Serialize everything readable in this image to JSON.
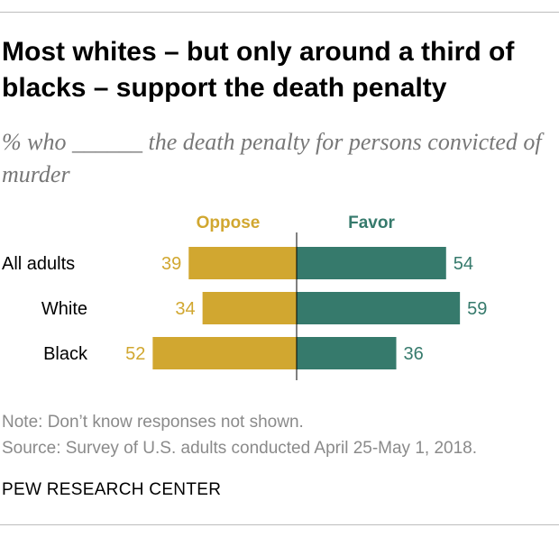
{
  "title": "Most whites – but only around a third of blacks – support the death penalty",
  "subtitle": "% who ______ the death penalty for persons convicted of murder",
  "chart_data": {
    "type": "bar",
    "orientation": "diverging-horizontal",
    "categories": [
      "All adults",
      "White",
      "Black"
    ],
    "series": [
      {
        "name": "Oppose",
        "values": [
          39,
          34,
          52
        ],
        "color": "#D1A730"
      },
      {
        "name": "Favor",
        "values": [
          54,
          59,
          36
        ],
        "color": "#367A6C"
      }
    ],
    "grid": false,
    "legend": "top-center"
  },
  "note": "Note: Don’t know responses not shown.",
  "source": "Source: Survey of U.S. adults conducted April 25-May 1, 2018.",
  "footer": "PEW RESEARCH CENTER"
}
